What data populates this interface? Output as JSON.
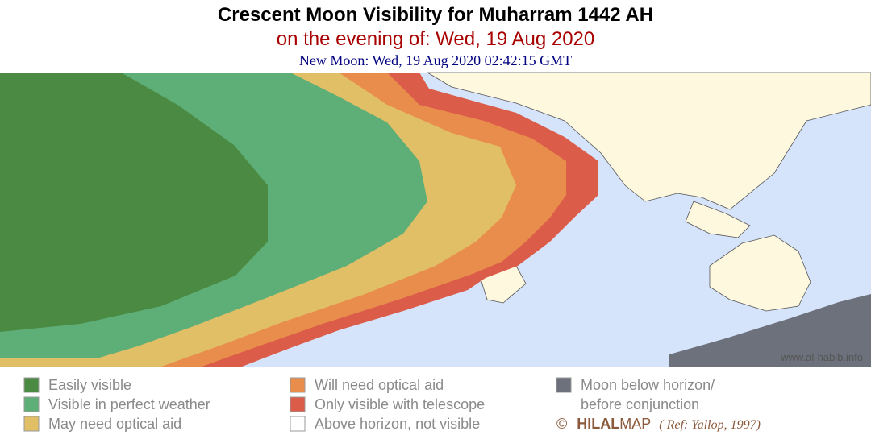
{
  "header": {
    "title": "Crescent Moon Visibility for Muharram 1442 AH",
    "subtitle": "on the evening of: Wed, 19 Aug 2020",
    "new_moon": "New Moon: Wed, 19 Aug 2020 02:42:15 GMT"
  },
  "credit": "www.al-habib.info",
  "legend": [
    {
      "lines": [
        "Easily visible"
      ],
      "color": "#4b8a42"
    },
    {
      "lines": [
        "Visible in perfect weather"
      ],
      "color": "#5eae78"
    },
    {
      "lines": [
        "May need optical aid"
      ],
      "color": "#e1bf67"
    },
    {
      "lines": [
        "Will need optical aid"
      ],
      "color": "#e98d4c"
    },
    {
      "lines": [
        "Only visible with telescope"
      ],
      "color": "#dc5c4a"
    },
    {
      "lines": [
        "Above horizon, not visible"
      ],
      "color": "#ffffff"
    },
    {
      "lines": [
        "Moon below horizon/",
        "before conjunction"
      ],
      "color": "#6d717c"
    }
  ],
  "footer": {
    "copyright": "©",
    "brand_bold": "HILAL",
    "brand": "MAP",
    "reference": "( Ref: Yallop, 1997)"
  }
}
